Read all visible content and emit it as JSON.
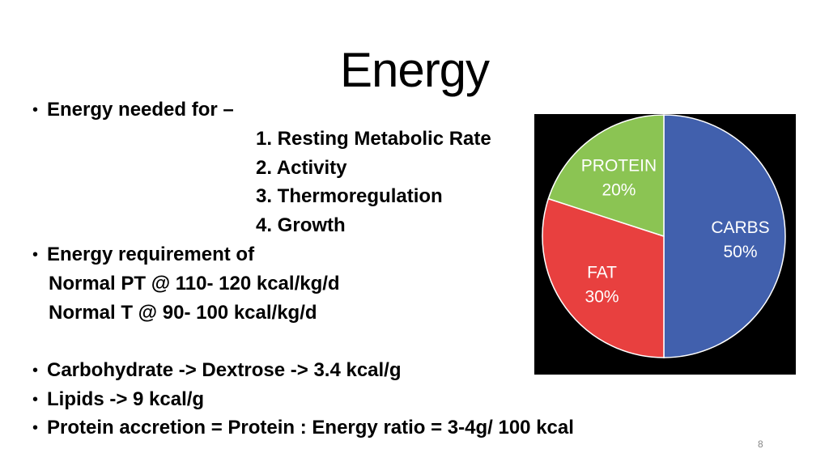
{
  "slide": {
    "title": "Energy",
    "page_number": "8"
  },
  "content": {
    "bullet_1": "Energy needed for –",
    "list_items": [
      "1. Resting Metabolic Rate",
      "2. Activity",
      "3. Thermoregulation",
      "4. Growth"
    ],
    "bullet_2": "Energy requirement of",
    "sub_lines": [
      "Normal PT @ 110-  120 kcal/kg/d",
      "Normal T @ 90- 100 kcal/kg/d"
    ],
    "bullet_3": "Carbohydrate -> Dextrose -> 3.4 kcal/g",
    "bullet_4": "Lipids -> 9 kcal/g",
    "bullet_5": "Protein accretion = Protein : Energy ratio = 3-4g/ 100 kcal"
  },
  "chart_data": {
    "type": "pie",
    "title": "",
    "slices": [
      {
        "name": "CARBS",
        "value": 50,
        "label": "50%",
        "color": "#4160ad"
      },
      {
        "name": "FAT",
        "value": 30,
        "label": "30%",
        "color": "#e8403f"
      },
      {
        "name": "PROTEIN",
        "value": 20,
        "label": "20%",
        "color": "#8bc453"
      }
    ],
    "start": "top",
    "direction": "clockwise",
    "background": "#000000",
    "legend": "none"
  }
}
